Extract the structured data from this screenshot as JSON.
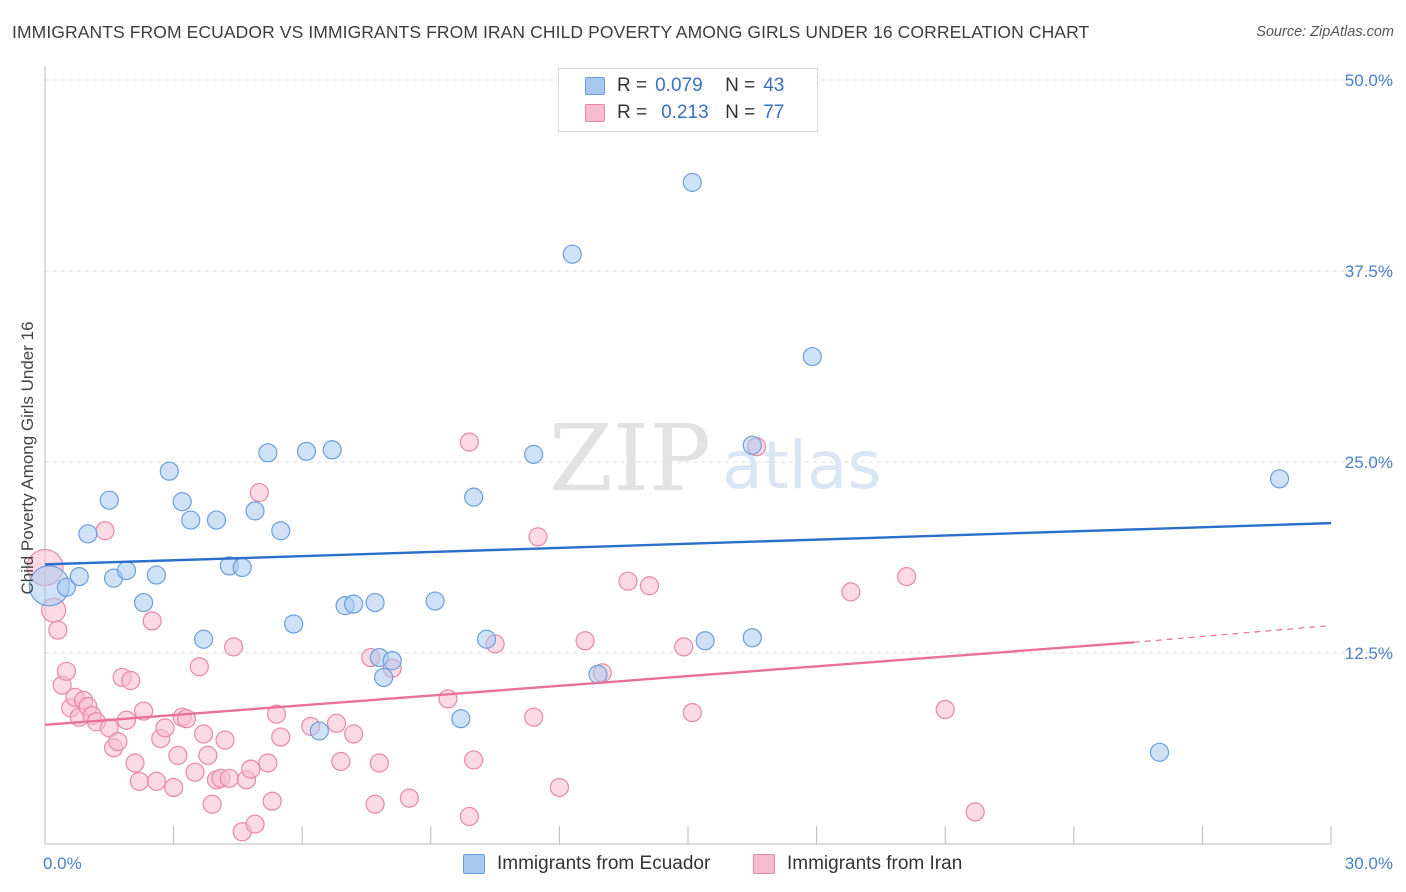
{
  "header": {
    "title": "IMMIGRANTS FROM ECUADOR VS IMMIGRANTS FROM IRAN CHILD POVERTY AMONG GIRLS UNDER 16 CORRELATION CHART",
    "source": "Source: ZipAtlas.com"
  },
  "legend": {
    "ecuador": {
      "r_label": "R =",
      "r_value": "0.079",
      "n_label": "N =",
      "n_value": "43"
    },
    "iran": {
      "r_label": "R =",
      "r_value": "0.213",
      "n_label": "N =",
      "n_value": "77"
    }
  },
  "watermark": {
    "zip": "ZIP",
    "atlas": "atlas"
  },
  "colors": {
    "ecuador_fill": "#a8c8f0",
    "ecuador_stroke": "#6a9fdc",
    "ecuador_line": "#2a6fc9",
    "iran_fill": "#f8bcd0",
    "iran_stroke": "#e887a8",
    "iran_line": "#e8709a",
    "tick_text": "#4a7fc8",
    "grid": "#dddddd"
  },
  "chart_data": {
    "type": "scatter",
    "title": "IMMIGRANTS FROM ECUADOR VS IMMIGRANTS FROM IRAN CHILD POVERTY AMONG GIRLS UNDER 16 CORRELATION CHART",
    "xlabel": "",
    "ylabel": "Child Poverty Among Girls Under 16",
    "xlim": [
      0,
      30
    ],
    "ylim": [
      0,
      50
    ],
    "x_tick_labels": [
      "0.0%",
      "30.0%"
    ],
    "y_ticks": [
      12.5,
      25.0,
      37.5,
      50.0
    ],
    "y_tick_labels": [
      "12.5%",
      "25.0%",
      "37.5%",
      "50.0%"
    ],
    "grid": "horizontal dashed",
    "legend_position": "top-center",
    "series": [
      {
        "name": "Immigrants from Ecuador",
        "r": 0.079,
        "n": 43,
        "trend": {
          "x": [
            0,
            30
          ],
          "y": [
            18.3,
            21.0
          ]
        },
        "points": [
          [
            0.1,
            16.9,
            20
          ],
          [
            0.5,
            16.8,
            9
          ],
          [
            0.8,
            17.5,
            9
          ],
          [
            1.0,
            20.3,
            9
          ],
          [
            1.5,
            22.5,
            9
          ],
          [
            1.6,
            17.4,
            9
          ],
          [
            1.9,
            17.9,
            9
          ],
          [
            2.3,
            15.8,
            9
          ],
          [
            2.6,
            17.6,
            9
          ],
          [
            2.9,
            24.4,
            9
          ],
          [
            3.2,
            22.4,
            9
          ],
          [
            3.4,
            21.2,
            9
          ],
          [
            3.7,
            13.4,
            9
          ],
          [
            4.0,
            21.2,
            9
          ],
          [
            4.3,
            18.2,
            9
          ],
          [
            4.6,
            18.1,
            9
          ],
          [
            4.9,
            21.8,
            9
          ],
          [
            5.2,
            25.6,
            9
          ],
          [
            5.5,
            20.5,
            9
          ],
          [
            5.8,
            14.4,
            9
          ],
          [
            6.1,
            25.7,
            9
          ],
          [
            6.4,
            7.4,
            9
          ],
          [
            6.7,
            25.8,
            9
          ],
          [
            7.0,
            15.6,
            9
          ],
          [
            7.2,
            15.7,
            9
          ],
          [
            7.7,
            15.8,
            9
          ],
          [
            7.8,
            12.2,
            9
          ],
          [
            7.9,
            10.9,
            9
          ],
          [
            8.1,
            12.0,
            9
          ],
          [
            9.1,
            15.9,
            9
          ],
          [
            9.7,
            8.2,
            9
          ],
          [
            10.0,
            22.7,
            9
          ],
          [
            10.3,
            13.4,
            9
          ],
          [
            11.4,
            25.5,
            9
          ],
          [
            12.3,
            38.6,
            9
          ],
          [
            12.9,
            11.1,
            9
          ],
          [
            15.1,
            43.3,
            9
          ],
          [
            15.4,
            13.3,
            9
          ],
          [
            16.5,
            26.1,
            9
          ],
          [
            16.5,
            13.5,
            9
          ],
          [
            17.9,
            31.9,
            9
          ],
          [
            26.0,
            6.0,
            9
          ],
          [
            28.8,
            23.9,
            9
          ]
        ]
      },
      {
        "name": "Immigrants from Iran",
        "r": 0.213,
        "n": 77,
        "trend": {
          "x": [
            0,
            25.4
          ],
          "y": [
            7.8,
            13.2
          ]
        },
        "trend_extension": {
          "x": [
            25.4,
            30
          ],
          "y": [
            13.2,
            14.3
          ]
        },
        "points": [
          [
            0.0,
            18.1,
            18
          ],
          [
            0.2,
            15.3,
            12
          ],
          [
            0.3,
            14.0,
            9
          ],
          [
            0.4,
            10.4,
            9
          ],
          [
            0.5,
            11.3,
            9
          ],
          [
            0.6,
            8.9,
            9
          ],
          [
            0.7,
            9.6,
            9
          ],
          [
            0.8,
            8.3,
            9
          ],
          [
            0.9,
            9.4,
            9
          ],
          [
            1.0,
            9.0,
            9
          ],
          [
            1.1,
            8.4,
            9
          ],
          [
            1.2,
            8.0,
            9
          ],
          [
            1.4,
            20.5,
            9
          ],
          [
            1.5,
            7.6,
            9
          ],
          [
            1.6,
            6.3,
            9
          ],
          [
            1.7,
            6.7,
            9
          ],
          [
            1.8,
            10.9,
            9
          ],
          [
            1.9,
            8.1,
            9
          ],
          [
            2.0,
            10.7,
            9
          ],
          [
            2.1,
            5.3,
            9
          ],
          [
            2.2,
            4.1,
            9
          ],
          [
            2.3,
            8.7,
            9
          ],
          [
            2.5,
            14.6,
            9
          ],
          [
            2.6,
            4.1,
            9
          ],
          [
            2.7,
            6.9,
            9
          ],
          [
            2.8,
            7.6,
            9
          ],
          [
            3.0,
            3.7,
            9
          ],
          [
            3.1,
            5.8,
            9
          ],
          [
            3.2,
            8.3,
            9
          ],
          [
            3.3,
            8.2,
            9
          ],
          [
            3.5,
            4.7,
            9
          ],
          [
            3.6,
            11.6,
            9
          ],
          [
            3.7,
            7.2,
            9
          ],
          [
            3.8,
            5.8,
            9
          ],
          [
            3.9,
            2.6,
            9
          ],
          [
            4.0,
            4.2,
            9
          ],
          [
            4.1,
            4.3,
            9
          ],
          [
            4.2,
            6.8,
            9
          ],
          [
            4.3,
            4.3,
            9
          ],
          [
            4.4,
            12.9,
            9
          ],
          [
            4.6,
            0.8,
            9
          ],
          [
            4.7,
            4.2,
            9
          ],
          [
            4.8,
            4.9,
            9
          ],
          [
            4.9,
            1.3,
            9
          ],
          [
            5.0,
            23.0,
            9
          ],
          [
            5.2,
            5.3,
            9
          ],
          [
            5.3,
            2.8,
            9
          ],
          [
            5.4,
            8.5,
            9
          ],
          [
            5.5,
            7.0,
            9
          ],
          [
            6.2,
            7.7,
            9
          ],
          [
            6.8,
            7.9,
            9
          ],
          [
            6.9,
            5.4,
            9
          ],
          [
            7.2,
            7.2,
            9
          ],
          [
            7.6,
            12.2,
            9
          ],
          [
            7.7,
            2.6,
            9
          ],
          [
            7.8,
            5.3,
            9
          ],
          [
            8.1,
            11.5,
            9
          ],
          [
            8.5,
            3.0,
            9
          ],
          [
            9.4,
            9.5,
            9
          ],
          [
            9.9,
            26.3,
            9
          ],
          [
            9.9,
            1.8,
            9
          ],
          [
            10.0,
            5.5,
            9
          ],
          [
            10.5,
            13.1,
            9
          ],
          [
            11.4,
            8.3,
            9
          ],
          [
            11.5,
            20.1,
            9
          ],
          [
            12.0,
            3.7,
            9
          ],
          [
            12.6,
            13.3,
            9
          ],
          [
            13.0,
            11.2,
            9
          ],
          [
            13.6,
            17.2,
            9
          ],
          [
            14.1,
            16.9,
            9
          ],
          [
            14.9,
            12.9,
            9
          ],
          [
            15.1,
            8.6,
            9
          ],
          [
            16.6,
            26.0,
            9
          ],
          [
            18.8,
            16.5,
            9
          ],
          [
            20.1,
            17.5,
            9
          ],
          [
            21.0,
            8.8,
            9
          ],
          [
            21.7,
            2.1,
            9
          ]
        ]
      }
    ]
  },
  "bottom_legend": {
    "ecuador_label": "Immigrants from Ecuador",
    "iran_label": "Immigrants from Iran"
  }
}
